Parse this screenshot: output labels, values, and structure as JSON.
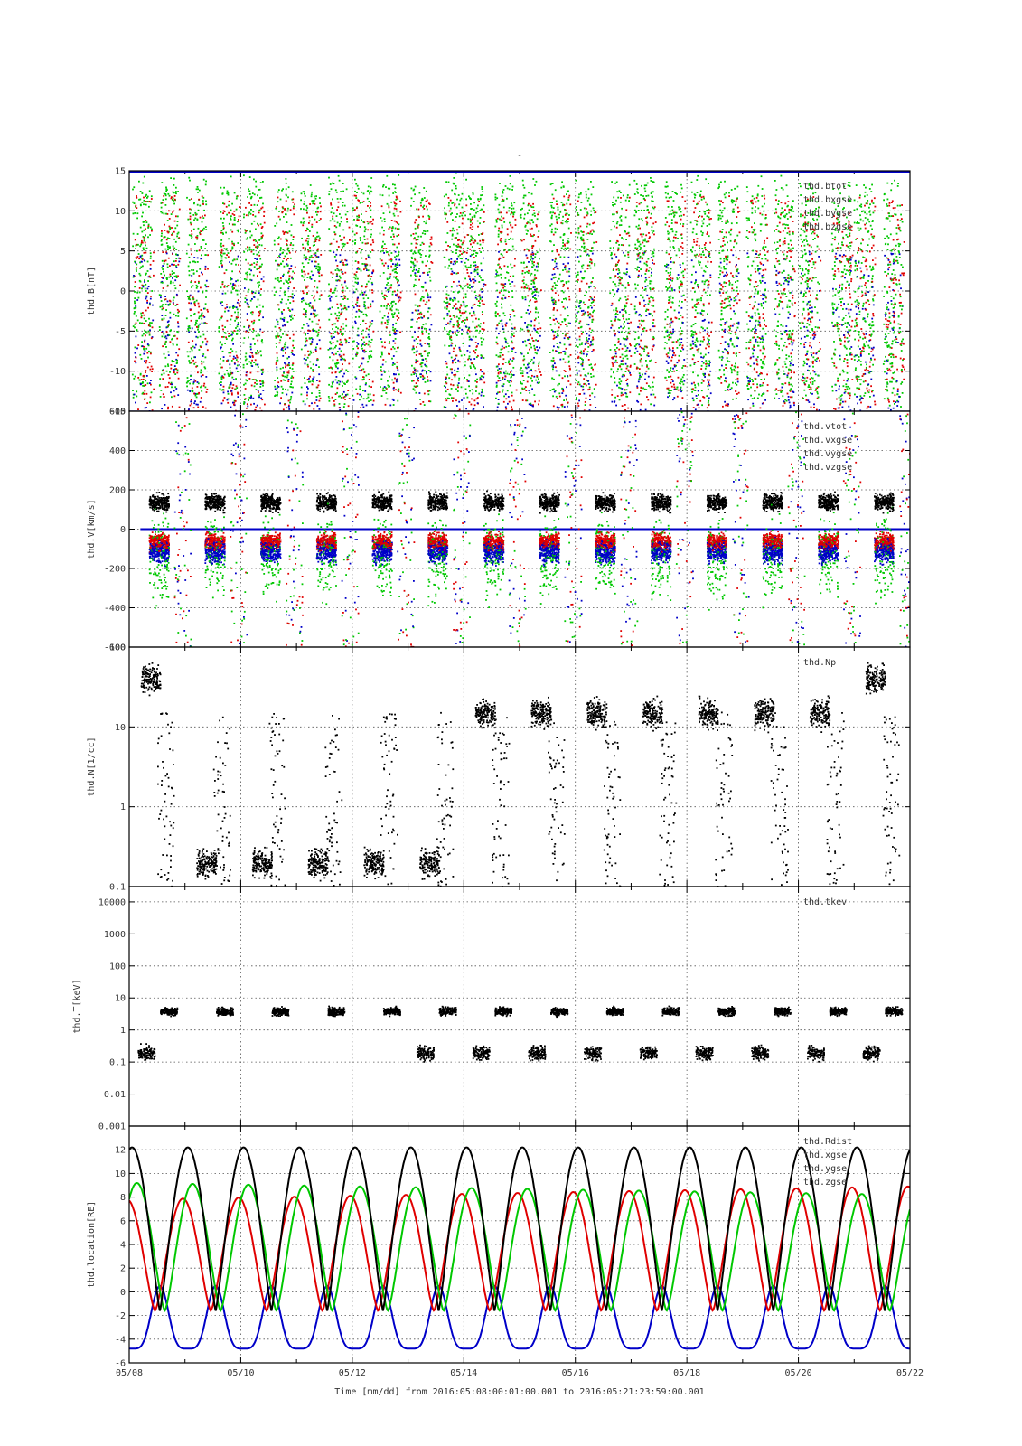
{
  "figure": {
    "top_mark": "-",
    "footer": "Time [mm/dd]  from 2016:05:08:00:01:00.001  to  2016:05:21:23:59:00.001"
  },
  "colors": {
    "black": "#000000",
    "red": "#e00000",
    "green": "#00c800",
    "blue": "#0000c8"
  },
  "chart_data": [
    {
      "id": "B",
      "type": "scatter",
      "ylabel": "thd.B[nT]",
      "ylim": [
        -15,
        15
      ],
      "yscale": "linear",
      "yticks": [
        "15",
        "10",
        "5",
        "0",
        "-5",
        "-10",
        "-15"
      ],
      "ytick_values": [
        15,
        10,
        5,
        0,
        -5,
        -10,
        -15
      ],
      "legend": [
        "thd.btot",
        "thd.bxgse",
        "thd.bygse",
        "thd.bzgse"
      ],
      "legend_placement": "top-right",
      "series": [
        {
          "name": "thd.btot",
          "color": "black",
          "values_note": "mostly above 15 nT (off scale)"
        },
        {
          "name": "thd.bxgse",
          "color": "red"
        },
        {
          "name": "thd.bygse",
          "color": "green"
        },
        {
          "name": "thd.bzgse",
          "color": "blue"
        }
      ]
    },
    {
      "id": "V",
      "type": "scatter",
      "ylabel": "thd.V[km/s]",
      "ylim": [
        -600,
        600
      ],
      "yscale": "linear",
      "yticks": [
        "600",
        "400",
        "200",
        "0",
        "-200",
        "-400",
        "-600"
      ],
      "ytick_values": [
        600,
        400,
        200,
        0,
        -200,
        -400,
        -600
      ],
      "legend": [
        "thd.vtot",
        "thd.vxgse",
        "thd.vygse",
        "thd.vzgse"
      ],
      "legend_placement": "top-right",
      "series": [
        {
          "name": "thd.vtot",
          "color": "black"
        },
        {
          "name": "thd.vxgse",
          "color": "red"
        },
        {
          "name": "thd.vygse",
          "color": "green"
        },
        {
          "name": "thd.vzgse",
          "color": "blue"
        }
      ]
    },
    {
      "id": "N",
      "type": "scatter",
      "ylabel": "thd.N[1/cc]",
      "ylim": [
        0.1,
        100
      ],
      "yscale": "log",
      "yticks": [
        "100",
        "10",
        "1",
        "0.1"
      ],
      "ytick_values": [
        100,
        10,
        1,
        0.1
      ],
      "legend": [
        "thd.Np"
      ],
      "legend_placement": "top-right",
      "series": [
        {
          "name": "thd.Np",
          "color": "black"
        }
      ]
    },
    {
      "id": "T",
      "type": "scatter",
      "ylabel": "thd.T[keV]",
      "ylim": [
        0.001,
        30000
      ],
      "yscale": "log",
      "yticks": [
        "10000",
        "1000",
        "100",
        "10",
        "1",
        "0.1",
        "0.01",
        "0.001"
      ],
      "ytick_values": [
        10000,
        1000,
        100,
        10,
        1,
        0.1,
        0.01,
        0.001
      ],
      "legend": [
        "thd.tkev"
      ],
      "legend_placement": "top-right",
      "series": [
        {
          "name": "thd.tkev",
          "color": "black"
        }
      ]
    },
    {
      "id": "location",
      "type": "line",
      "ylabel": "thd.location[RE]",
      "ylim": [
        -6,
        14
      ],
      "yscale": "linear",
      "yticks": [
        "12",
        "10",
        "8",
        "6",
        "4",
        "2",
        "0",
        "-2",
        "-4",
        "-6"
      ],
      "ytick_values": [
        12,
        10,
        8,
        6,
        4,
        2,
        0,
        -2,
        -4,
        -6
      ],
      "legend": [
        "thd.Rdist",
        "thd.xgse",
        "thd.ygse",
        "thd.zgse"
      ],
      "legend_placement": "top-right",
      "orbit_period_days": 1.0,
      "series": [
        {
          "name": "thd.Rdist",
          "color": "black",
          "apogee": 12.2,
          "perigee": -1.6
        },
        {
          "name": "thd.xgse",
          "color": "red",
          "max_start": 7.8,
          "max_end": 8.9,
          "min": -1.6
        },
        {
          "name": "thd.ygse",
          "color": "green",
          "max_start": 9.2,
          "max_end": 8.2,
          "min": -1.6
        },
        {
          "name": "thd.zgse",
          "color": "blue",
          "max": 0.5,
          "min": -4.8
        }
      ]
    }
  ],
  "x_axis": {
    "label": "Time [mm/dd]",
    "range": [
      "2016-05-08",
      "2016-05-22"
    ],
    "ticks": [
      "05/08",
      "05/10",
      "05/12",
      "05/14",
      "05/16",
      "05/18",
      "05/20",
      "05/22"
    ],
    "grid": true
  }
}
